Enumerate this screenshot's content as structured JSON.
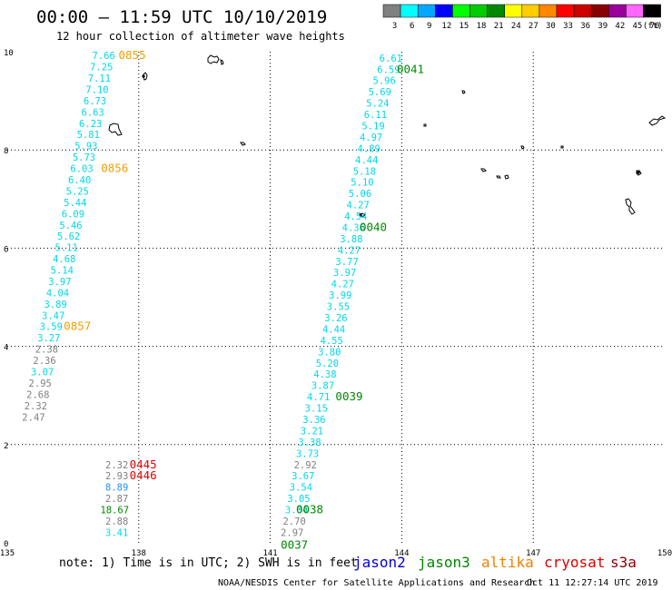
{
  "header": {
    "title": "00:00 – 11:59 UTC 10/10/2019",
    "subtitle": "12 hour collection of altimeter wave heights"
  },
  "colorbar": {
    "unit": "(ft)",
    "stops": [
      {
        "label": "3",
        "color": "#808080"
      },
      {
        "label": "6",
        "color": "#00ffff"
      },
      {
        "label": "9",
        "color": "#00a8ff"
      },
      {
        "label": "12",
        "color": "#0000ff"
      },
      {
        "label": "15",
        "color": "#00ff00"
      },
      {
        "label": "18",
        "color": "#00cc00"
      },
      {
        "label": "21",
        "color": "#008800"
      },
      {
        "label": "24",
        "color": "#ffff00"
      },
      {
        "label": "27",
        "color": "#ffcc00"
      },
      {
        "label": "30",
        "color": "#ff8800"
      },
      {
        "label": "33",
        "color": "#ff0000"
      },
      {
        "label": "36",
        "color": "#cc0000"
      },
      {
        "label": "39",
        "color": "#880000"
      },
      {
        "label": "42",
        "color": "#990099"
      },
      {
        "label": "45",
        "color": "#ff66ff"
      },
      {
        "label": "70",
        "color": "#000000"
      }
    ]
  },
  "axes": {
    "lon_ticks": [
      "135",
      "138",
      "141",
      "144",
      "147",
      "150"
    ],
    "lat_ticks": [
      "0",
      "2",
      "4",
      "6",
      "8",
      "10"
    ],
    "lon_range": [
      135,
      150
    ],
    "lat_range": [
      0,
      10
    ]
  },
  "colors": {
    "gray": "#808080",
    "cyan": "#00d8e8",
    "blue": "#1e90ff",
    "green": "#008800",
    "orange": "#f0a000",
    "red": "#e00000",
    "jason2": "#0000dd",
    "jason3": "#008800",
    "altika": "#f08000",
    "cryosat": "#dd0000",
    "s3a": "#880000"
  },
  "tracks": [
    {
      "name": "west-track",
      "values": [
        {
          "v": "7.66",
          "c": "cyan",
          "lon": 137.2,
          "lat": 9.85
        },
        {
          "v": "7.25",
          "c": "cyan",
          "lon": 137.15,
          "lat": 9.62
        },
        {
          "v": "7.11",
          "c": "cyan",
          "lon": 137.1,
          "lat": 9.39
        },
        {
          "v": "7.10",
          "c": "cyan",
          "lon": 137.05,
          "lat": 9.16
        },
        {
          "v": "6.73",
          "c": "cyan",
          "lon": 137.0,
          "lat": 8.93
        },
        {
          "v": "6.63",
          "c": "cyan",
          "lon": 136.95,
          "lat": 8.7
        },
        {
          "v": "6.23",
          "c": "cyan",
          "lon": 136.9,
          "lat": 8.47
        },
        {
          "v": "5.81",
          "c": "cyan",
          "lon": 136.85,
          "lat": 8.24
        },
        {
          "v": "5.93",
          "c": "cyan",
          "lon": 136.8,
          "lat": 8.01
        },
        {
          "v": "5.73",
          "c": "cyan",
          "lon": 136.75,
          "lat": 7.78
        },
        {
          "v": "6.03",
          "c": "cyan",
          "lon": 136.7,
          "lat": 7.55
        },
        {
          "v": "6.40",
          "c": "cyan",
          "lon": 136.65,
          "lat": 7.32
        },
        {
          "v": "5.25",
          "c": "cyan",
          "lon": 136.6,
          "lat": 7.09
        },
        {
          "v": "5.44",
          "c": "cyan",
          "lon": 136.55,
          "lat": 6.86
        },
        {
          "v": "6.09",
          "c": "cyan",
          "lon": 136.5,
          "lat": 6.63
        },
        {
          "v": "5.46",
          "c": "cyan",
          "lon": 136.45,
          "lat": 6.4
        },
        {
          "v": "5.62",
          "c": "cyan",
          "lon": 136.4,
          "lat": 6.17
        },
        {
          "v": "5.11",
          "c": "cyan",
          "lon": 136.35,
          "lat": 5.94
        },
        {
          "v": "4.68",
          "c": "cyan",
          "lon": 136.3,
          "lat": 5.71
        },
        {
          "v": "5.14",
          "c": "cyan",
          "lon": 136.25,
          "lat": 5.48
        },
        {
          "v": "3.97",
          "c": "cyan",
          "lon": 136.2,
          "lat": 5.25
        },
        {
          "v": "4.04",
          "c": "cyan",
          "lon": 136.15,
          "lat": 5.02
        },
        {
          "v": "3.89",
          "c": "cyan",
          "lon": 136.1,
          "lat": 4.79
        },
        {
          "v": "3.47",
          "c": "cyan",
          "lon": 136.05,
          "lat": 4.56
        },
        {
          "v": "3.59",
          "c": "cyan",
          "lon": 136.0,
          "lat": 4.33
        },
        {
          "v": "3.27",
          "c": "cyan",
          "lon": 135.95,
          "lat": 4.1
        },
        {
          "v": "2.38",
          "c": "gray",
          "lon": 135.9,
          "lat": 3.87
        },
        {
          "v": "2.36",
          "c": "gray",
          "lon": 135.85,
          "lat": 3.64
        },
        {
          "v": "3.07",
          "c": "cyan",
          "lon": 135.8,
          "lat": 3.41
        },
        {
          "v": "2.95",
          "c": "gray",
          "lon": 135.75,
          "lat": 3.18
        },
        {
          "v": "2.68",
          "c": "gray",
          "lon": 135.7,
          "lat": 2.95
        },
        {
          "v": "2.32",
          "c": "gray",
          "lon": 135.65,
          "lat": 2.72
        },
        {
          "v": "2.47",
          "c": "gray",
          "lon": 135.6,
          "lat": 2.49
        }
      ]
    },
    {
      "name": "west-bottom",
      "values": [
        {
          "v": "2.32",
          "c": "gray",
          "lon": 137.5,
          "lat": 1.52
        },
        {
          "v": "2.93",
          "c": "gray",
          "lon": 137.5,
          "lat": 1.29
        },
        {
          "v": "8.89",
          "c": "blue",
          "lon": 137.5,
          "lat": 1.06
        },
        {
          "v": "2.87",
          "c": "gray",
          "lon": 137.5,
          "lat": 0.83
        },
        {
          "v": "18.67",
          "c": "green",
          "lon": 137.45,
          "lat": 0.6
        },
        {
          "v": "2.88",
          "c": "gray",
          "lon": 137.5,
          "lat": 0.37
        },
        {
          "v": "3.41",
          "c": "cyan",
          "lon": 137.5,
          "lat": 0.14
        }
      ]
    },
    {
      "name": "east-track",
      "values": [
        {
          "v": "6.61",
          "c": "cyan",
          "lon": 143.75,
          "lat": 9.8
        },
        {
          "v": "6.59",
          "c": "cyan",
          "lon": 143.7,
          "lat": 9.57
        },
        {
          "v": "5.96",
          "c": "cyan",
          "lon": 143.6,
          "lat": 9.34
        },
        {
          "v": "5.69",
          "c": "cyan",
          "lon": 143.5,
          "lat": 9.11
        },
        {
          "v": "5.24",
          "c": "cyan",
          "lon": 143.45,
          "lat": 8.88
        },
        {
          "v": "6.11",
          "c": "cyan",
          "lon": 143.4,
          "lat": 8.65
        },
        {
          "v": "5.19",
          "c": "cyan",
          "lon": 143.35,
          "lat": 8.42
        },
        {
          "v": "4.97",
          "c": "cyan",
          "lon": 143.3,
          "lat": 8.19
        },
        {
          "v": "4.89",
          "c": "cyan",
          "lon": 143.25,
          "lat": 7.96
        },
        {
          "v": "4.44",
          "c": "cyan",
          "lon": 143.2,
          "lat": 7.73
        },
        {
          "v": "5.18",
          "c": "cyan",
          "lon": 143.15,
          "lat": 7.5
        },
        {
          "v": "5.10",
          "c": "cyan",
          "lon": 143.1,
          "lat": 7.27
        },
        {
          "v": "5.06",
          "c": "cyan",
          "lon": 143.05,
          "lat": 7.04
        },
        {
          "v": "4.27",
          "c": "cyan",
          "lon": 143.0,
          "lat": 6.81
        },
        {
          "v": "4.54",
          "c": "cyan",
          "lon": 142.95,
          "lat": 6.58
        },
        {
          "v": "4.36",
          "c": "cyan",
          "lon": 142.9,
          "lat": 6.35
        },
        {
          "v": "3.88",
          "c": "cyan",
          "lon": 142.85,
          "lat": 6.12
        },
        {
          "v": "4.27",
          "c": "cyan",
          "lon": 142.8,
          "lat": 5.89
        },
        {
          "v": "3.77",
          "c": "cyan",
          "lon": 142.75,
          "lat": 5.66
        },
        {
          "v": "3.97",
          "c": "cyan",
          "lon": 142.7,
          "lat": 5.43
        },
        {
          "v": "4.27",
          "c": "cyan",
          "lon": 142.65,
          "lat": 5.2
        },
        {
          "v": "3.99",
          "c": "cyan",
          "lon": 142.6,
          "lat": 4.97
        },
        {
          "v": "3.55",
          "c": "cyan",
          "lon": 142.55,
          "lat": 4.74
        },
        {
          "v": "3.26",
          "c": "cyan",
          "lon": 142.5,
          "lat": 4.51
        },
        {
          "v": "4.44",
          "c": "cyan",
          "lon": 142.45,
          "lat": 4.28
        },
        {
          "v": "4.55",
          "c": "cyan",
          "lon": 142.4,
          "lat": 4.05
        },
        {
          "v": "3.80",
          "c": "cyan",
          "lon": 142.35,
          "lat": 3.82
        },
        {
          "v": "5.20",
          "c": "cyan",
          "lon": 142.3,
          "lat": 3.59
        },
        {
          "v": "4.38",
          "c": "cyan",
          "lon": 142.25,
          "lat": 3.36
        },
        {
          "v": "3.87",
          "c": "cyan",
          "lon": 142.2,
          "lat": 3.13
        },
        {
          "v": "4.71",
          "c": "cyan",
          "lon": 142.1,
          "lat": 2.9
        },
        {
          "v": "3.15",
          "c": "cyan",
          "lon": 142.05,
          "lat": 2.67
        },
        {
          "v": "3.36",
          "c": "cyan",
          "lon": 142.0,
          "lat": 2.44
        },
        {
          "v": "3.21",
          "c": "cyan",
          "lon": 141.95,
          "lat": 2.21
        },
        {
          "v": "3.38",
          "c": "cyan",
          "lon": 141.9,
          "lat": 1.98
        },
        {
          "v": "3.73",
          "c": "cyan",
          "lon": 141.85,
          "lat": 1.75
        },
        {
          "v": "2.92",
          "c": "gray",
          "lon": 141.8,
          "lat": 1.52
        },
        {
          "v": "3.67",
          "c": "cyan",
          "lon": 141.75,
          "lat": 1.29
        },
        {
          "v": "3.54",
          "c": "cyan",
          "lon": 141.7,
          "lat": 1.06
        },
        {
          "v": "3.05",
          "c": "cyan",
          "lon": 141.65,
          "lat": 0.83
        },
        {
          "v": "3.04",
          "c": "cyan",
          "lon": 141.6,
          "lat": 0.6
        },
        {
          "v": "2.70",
          "c": "gray",
          "lon": 141.55,
          "lat": 0.37
        },
        {
          "v": "2.97",
          "c": "gray",
          "lon": 141.5,
          "lat": 0.14
        }
      ]
    }
  ],
  "times": [
    {
      "v": "0855",
      "c": "orange",
      "lon": 137.85,
      "lat": 9.85
    },
    {
      "v": "0856",
      "c": "orange",
      "lon": 137.45,
      "lat": 7.55
    },
    {
      "v": "0857",
      "c": "orange",
      "lon": 136.6,
      "lat": 4.33
    },
    {
      "v": "0445",
      "c": "red",
      "lon": 138.1,
      "lat": 1.52
    },
    {
      "v": "0446",
      "c": "red",
      "lon": 138.1,
      "lat": 1.29
    },
    {
      "v": "0041",
      "c": "green",
      "lon": 144.2,
      "lat": 9.57
    },
    {
      "v": "0040",
      "c": "green",
      "lon": 143.35,
      "lat": 6.35
    },
    {
      "v": "0039",
      "c": "green",
      "lon": 142.8,
      "lat": 2.9
    },
    {
      "v": "0038",
      "c": "green",
      "lon": 141.9,
      "lat": 0.6
    },
    {
      "v": "0037",
      "c": "green",
      "lon": 141.55,
      "lat": -0.12
    }
  ],
  "footer": {
    "note": "note: 1) Time is in UTC; 2) SWH is in feet",
    "legend": [
      {
        "label": "jason2",
        "color": "#0000dd"
      },
      {
        "label": "jason3",
        "color": "#008800"
      },
      {
        "label": "altika",
        "color": "#f08000"
      },
      {
        "label": "cryosat",
        "color": "#dd0000"
      },
      {
        "label": "s3a",
        "color": "#880000"
      }
    ],
    "credit": "NOAA/NESDIS Center for Satellite Applications and Research",
    "timestamp": "Oct 11 12:27:14 UTC 2019"
  }
}
